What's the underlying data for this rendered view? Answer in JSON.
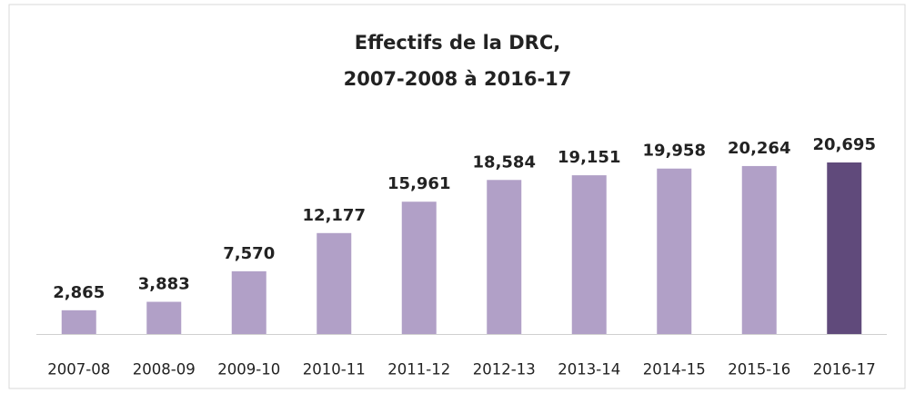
{
  "chart_data": {
    "type": "bar",
    "title": [
      "Effectifs de la DRC,",
      "2007-2008 à 2016-17"
    ],
    "categories": [
      "2007-08",
      "2008-09",
      "2009-10",
      "2010-11",
      "2011-12",
      "2012-13",
      "2013-14",
      "2014-15",
      "2015-16",
      "2016-17"
    ],
    "values": [
      2865,
      3883,
      7570,
      12177,
      15961,
      18584,
      19151,
      19958,
      20264,
      20695
    ],
    "value_labels": [
      "2,865",
      "3,883",
      "7,570",
      "12,177",
      "15,961",
      "18,584",
      "19,151",
      "19,958",
      "20,264",
      "20,695"
    ],
    "colors": [
      "#b1a0c7",
      "#b1a0c7",
      "#b1a0c7",
      "#b1a0c7",
      "#b1a0c7",
      "#b1a0c7",
      "#b1a0c7",
      "#b1a0c7",
      "#b1a0c7",
      "#604a7b"
    ]
  }
}
